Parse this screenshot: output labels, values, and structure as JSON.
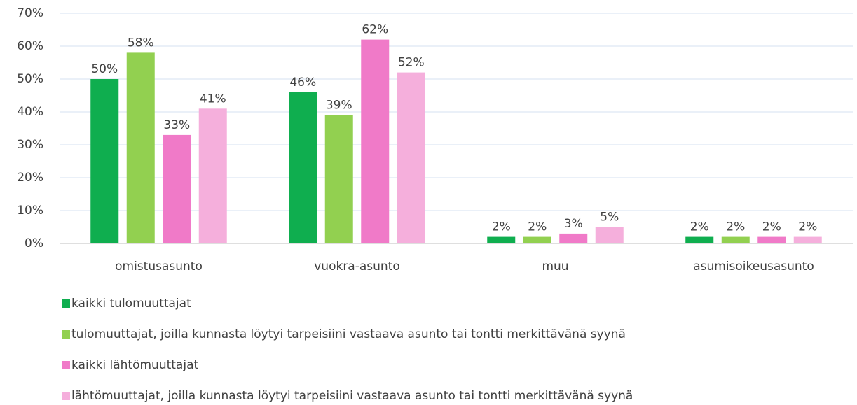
{
  "chart_data": {
    "type": "bar",
    "categories": [
      "omistusasunto",
      "vuokra-asunto",
      "muu",
      "asumisoikeusasunto"
    ],
    "series": [
      {
        "name": "kaikki tulomuuttajat",
        "color": "#0fae4f",
        "values": [
          50,
          46,
          2,
          2
        ],
        "value_labels": [
          "50%",
          "46%",
          "2%",
          "2%"
        ]
      },
      {
        "name": "tulomuuttajat, joilla kunnasta löytyi tarpeisiini vastaava asunto tai tontti merkittävänä syynä",
        "color": "#92d050",
        "values": [
          58,
          39,
          2,
          2
        ],
        "value_labels": [
          "58%",
          "39%",
          "2%",
          "2%"
        ]
      },
      {
        "name": "kaikki lähtömuuttajat",
        "color": "#f07ac8",
        "values": [
          33,
          62,
          3,
          2
        ],
        "value_labels": [
          "33%",
          "62%",
          "3%",
          "2%"
        ]
      },
      {
        "name": "lähtömuuttajat, joilla kunnasta löytyi tarpeisiini vastaava asunto tai tontti merkittävänä syynä",
        "color": "#f5afdc",
        "values": [
          41,
          52,
          5,
          2
        ],
        "value_labels": [
          "41%",
          "52%",
          "5%",
          "2%"
        ]
      }
    ],
    "ylim": [
      0,
      70
    ],
    "yticks": [
      {
        "value": 0,
        "label": "0%"
      },
      {
        "value": 10,
        "label": "10%"
      },
      {
        "value": 20,
        "label": "20%"
      },
      {
        "value": 30,
        "label": "30%"
      },
      {
        "value": 40,
        "label": "40%"
      },
      {
        "value": 50,
        "label": "50%"
      },
      {
        "value": 60,
        "label": "60%"
      },
      {
        "value": 70,
        "label": "70%"
      }
    ],
    "grid": true,
    "legend": "bottom"
  }
}
